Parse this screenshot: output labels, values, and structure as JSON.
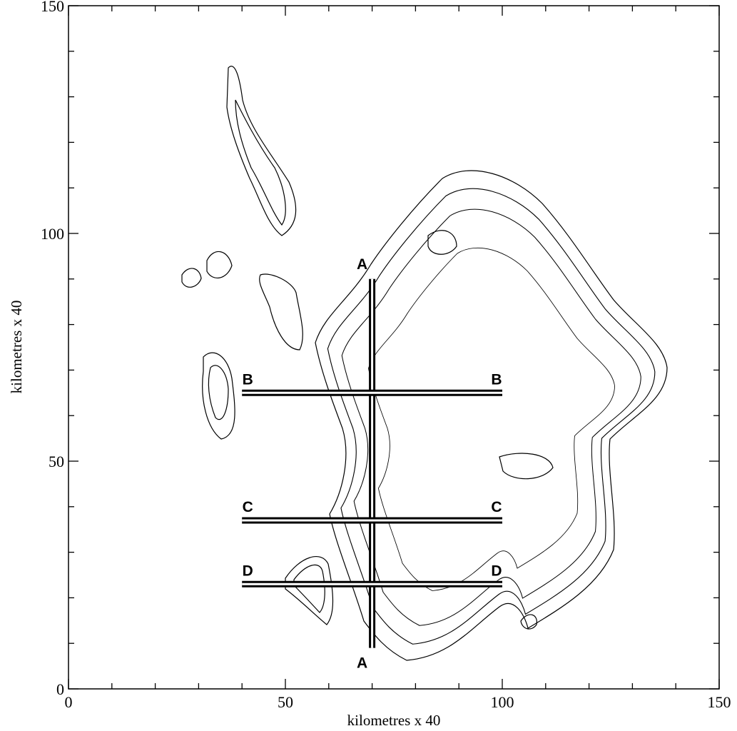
{
  "chart_data": {
    "type": "contour-map",
    "xlabel": "kilometres x 40",
    "ylabel": "kilometres x 40",
    "xlim": [
      0,
      150
    ],
    "ylim": [
      0,
      150
    ],
    "xticks": [
      0,
      50,
      100,
      150
    ],
    "yticks": [
      0,
      50,
      100,
      150
    ],
    "xminor_ticks": [
      10,
      20,
      30,
      40,
      60,
      70,
      80,
      90,
      110,
      120,
      130,
      140
    ],
    "yminor_ticks": [
      10,
      20,
      30,
      40,
      60,
      70,
      80,
      90,
      110,
      120,
      130,
      140
    ],
    "transects": [
      {
        "label": "A",
        "x": [
          70,
          70
        ],
        "y": [
          9,
          90
        ]
      },
      {
        "label": "B",
        "x": [
          40,
          100
        ],
        "y": [
          65,
          65
        ]
      },
      {
        "label": "C",
        "x": [
          40,
          100
        ],
        "y": [
          37,
          37
        ]
      },
      {
        "label": "D",
        "x": [
          40,
          100
        ],
        "y": [
          23,
          23
        ]
      }
    ]
  }
}
